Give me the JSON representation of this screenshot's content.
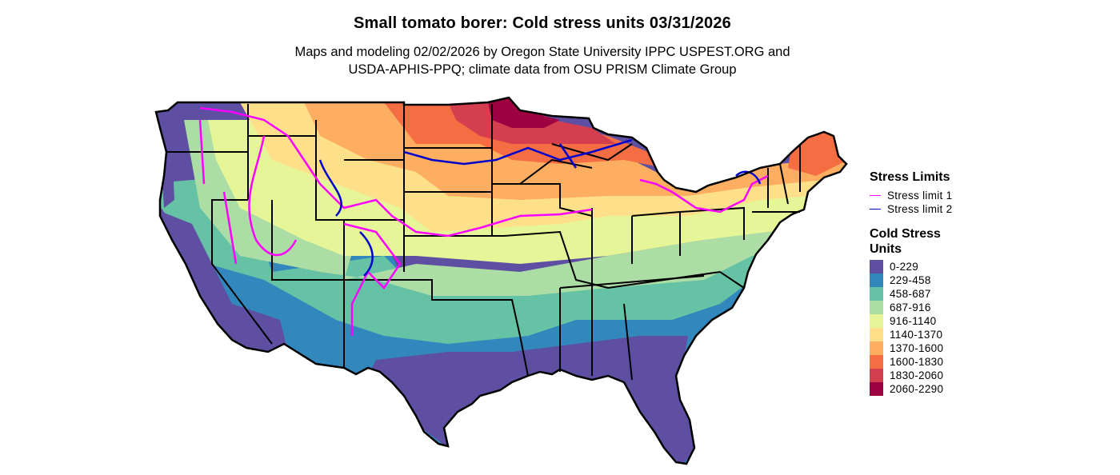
{
  "title": "Small tomato borer: Cold stress units 03/31/2026",
  "subtitle_line1": "Maps and modeling 02/02/2026 by Oregon State University IPPC USPEST.ORG and",
  "subtitle_line2": "USDA-APHIS-PPQ; climate data from OSU PRISM Climate Group",
  "legend": {
    "stress_title": "Stress Limits",
    "stress_items": [
      {
        "label": "Stress limit 1",
        "color": "#ff00ff"
      },
      {
        "label": "Stress limit 2",
        "color": "#0000cc"
      }
    ],
    "units_title_line1": "Cold Stress",
    "units_title_line2": "Units",
    "bins": [
      {
        "label": "0-229",
        "color": "#5e4fa2"
      },
      {
        "label": "229-458",
        "color": "#3288bd"
      },
      {
        "label": "458-687",
        "color": "#66c2a5"
      },
      {
        "label": "687-916",
        "color": "#abdda4"
      },
      {
        "label": "916-1140",
        "color": "#e6f598"
      },
      {
        "label": "1140-1370",
        "color": "#fee08b"
      },
      {
        "label": "1370-1600",
        "color": "#fdae61"
      },
      {
        "label": "1600-1830",
        "color": "#f46d43"
      },
      {
        "label": "1830-2060",
        "color": "#d53e4f"
      },
      {
        "label": "2060-2290",
        "color": "#9e0142"
      }
    ]
  }
}
